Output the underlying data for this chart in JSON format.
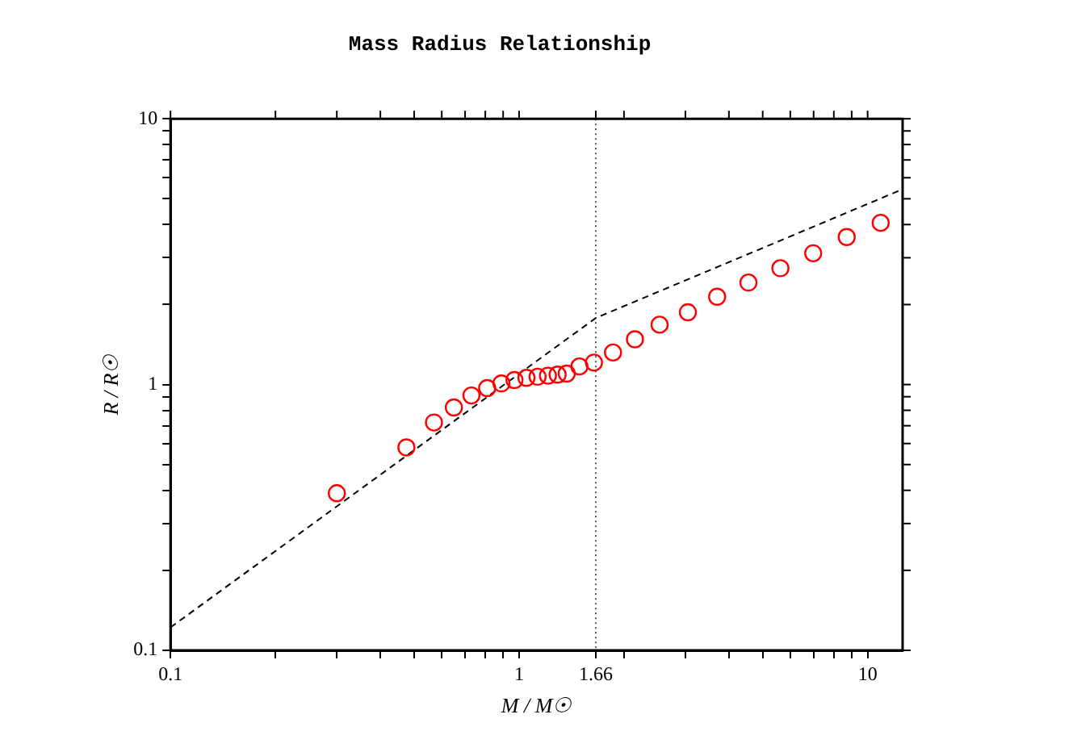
{
  "chart_data": {
    "type": "scatter",
    "title": "Mass Radius Relationship",
    "xlabel": "M / M☉",
    "ylabel": "R / R☉",
    "log": "xy",
    "grid": false,
    "legend": false,
    "xlim": [
      0.1,
      12.6
    ],
    "ylim": [
      0.1,
      10
    ],
    "xticks": [
      0.1,
      {
        "value": 0.2,
        "label": null
      },
      {
        "value": 0.3,
        "label": null
      },
      {
        "value": 0.4,
        "label": null
      },
      {
        "value": 0.5,
        "label": null
      },
      {
        "value": 0.6,
        "label": null
      },
      {
        "value": 0.7,
        "label": null
      },
      {
        "value": 0.8,
        "label": null
      },
      {
        "value": 0.9,
        "label": null
      },
      1,
      1.66,
      {
        "value": 2,
        "label": null
      },
      {
        "value": 3,
        "label": null
      },
      {
        "value": 4,
        "label": null
      },
      {
        "value": 5,
        "label": null
      },
      {
        "value": 6,
        "label": null
      },
      {
        "value": 7,
        "label": null
      },
      {
        "value": 8,
        "label": null
      },
      {
        "value": 9,
        "label": null
      },
      10
    ],
    "yticks": [
      0.1,
      {
        "value": 0.2,
        "label": null
      },
      {
        "value": 0.3,
        "label": null
      },
      {
        "value": 0.4,
        "label": null
      },
      {
        "value": 0.5,
        "label": null
      },
      {
        "value": 0.6,
        "label": null
      },
      {
        "value": 0.7,
        "label": null
      },
      {
        "value": 0.8,
        "label": null
      },
      {
        "value": 0.9,
        "label": null
      },
      1,
      {
        "value": 2,
        "label": null
      },
      {
        "value": 3,
        "label": null
      },
      {
        "value": 4,
        "label": null
      },
      {
        "value": 5,
        "label": null
      },
      {
        "value": 6,
        "label": null
      },
      {
        "value": 7,
        "label": null
      },
      {
        "value": 8,
        "label": null
      },
      {
        "value": 9,
        "label": null
      },
      10
    ],
    "ref_lines": [
      {
        "axis": "x",
        "value": 1.66,
        "color": "#555555",
        "line_style": "dotted"
      }
    ],
    "series": [
      {
        "type": "scatter",
        "color": "#ff0000",
        "marker": "circle",
        "x": [
          0.3,
          0.475,
          0.57,
          0.65,
          0.73,
          0.81,
          0.89,
          0.97,
          1.05,
          1.13,
          1.21,
          1.29,
          1.37,
          1.49,
          1.64,
          1.86,
          2.15,
          2.53,
          3.05,
          3.7,
          4.55,
          5.62,
          6.98,
          8.71,
          10.9
        ],
        "values": [
          0.39,
          0.58,
          0.72,
          0.82,
          0.91,
          0.97,
          1.01,
          1.04,
          1.06,
          1.07,
          1.08,
          1.09,
          1.1,
          1.17,
          1.21,
          1.32,
          1.48,
          1.68,
          1.87,
          2.14,
          2.42,
          2.74,
          3.12,
          3.59,
          4.06
        ]
      },
      {
        "type": "line",
        "color": "#000000",
        "marker": "none",
        "line_style": "dashed",
        "x": [
          0.1,
          1.66,
          12.6
        ],
        "values": [
          0.122,
          1.78,
          5.43
        ]
      }
    ]
  }
}
